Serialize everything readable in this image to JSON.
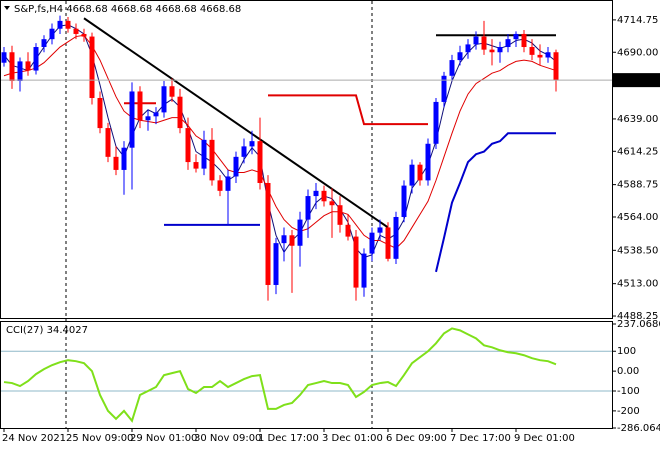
{
  "chart_data": [
    {
      "type": "candlestick",
      "title": "S&P,fs,H4  4668.68 4668.68 4668.68 4668.68",
      "categories": [
        "24 Nov 2021",
        null,
        null,
        null,
        null,
        null,
        null,
        null,
        "25 Nov 09:00",
        null,
        null,
        null,
        null,
        null,
        null,
        null,
        "29 Nov 01:00",
        null,
        null,
        null,
        null,
        null,
        null,
        null,
        "30 Nov 09:00",
        null,
        null,
        null,
        null,
        null,
        null,
        null,
        "1 Dec 17:00",
        null,
        null,
        null,
        null,
        null,
        null,
        null,
        "3 Dec 01:00",
        null,
        null,
        null,
        null,
        null,
        null,
        null,
        "6 Dec 09:00",
        null,
        null,
        null,
        null,
        null,
        null,
        null,
        "7 Dec 17:00",
        null,
        null,
        null,
        null,
        null,
        null,
        null,
        "9 Dec 01:00",
        null,
        null,
        null,
        null,
        null
      ],
      "ohlc": [
        [
          4682,
          4694,
          4679,
          4690
        ],
        [
          4690,
          4695,
          4662,
          4668
        ],
        [
          4668,
          4686,
          4660,
          4683
        ],
        [
          4683,
          4690,
          4672,
          4676
        ],
        [
          4676,
          4697,
          4673,
          4694
        ],
        [
          4694,
          4703,
          4690,
          4700
        ],
        [
          4700,
          4712,
          4696,
          4708
        ],
        [
          4708,
          4718,
          4704,
          4714
        ],
        [
          4714,
          4717,
          4705,
          4708
        ],
        [
          4708,
          4712,
          4700,
          4704
        ],
        [
          4704,
          4708,
          4698,
          4702
        ],
        [
          4702,
          4705,
          4650,
          4655
        ],
        [
          4655,
          4660,
          4628,
          4632
        ],
        [
          4632,
          4636,
          4606,
          4610
        ],
        [
          4610,
          4618,
          4596,
          4600
        ],
        [
          4600,
          4622,
          4581,
          4617
        ],
        [
          4617,
          4667,
          4585,
          4660
        ],
        [
          4660,
          4664,
          4632,
          4638
        ],
        [
          4638,
          4646,
          4630,
          4641
        ],
        [
          4641,
          4648,
          4635,
          4644
        ],
        [
          4644,
          4668,
          4640,
          4664
        ],
        [
          4664,
          4670,
          4652,
          4656
        ],
        [
          4656,
          4662,
          4628,
          4632
        ],
        [
          4632,
          4640,
          4600,
          4606
        ],
        [
          4606,
          4612,
          4598,
          4601
        ],
        [
          4601,
          4630,
          4596,
          4623
        ],
        [
          4623,
          4632,
          4588,
          4592
        ],
        [
          4592,
          4596,
          4580,
          4584
        ],
        [
          4584,
          4600,
          4558,
          4595
        ],
        [
          4595,
          4614,
          4590,
          4610
        ],
        [
          4610,
          4624,
          4605,
          4618
        ],
        [
          4618,
          4630,
          4612,
          4622
        ],
        [
          4622,
          4640,
          4585,
          4590
        ],
        [
          4590,
          4596,
          4500,
          4512
        ],
        [
          4512,
          4548,
          4505,
          4544
        ],
        [
          4544,
          4556,
          4530,
          4550
        ],
        [
          4550,
          4554,
          4506,
          4542
        ],
        [
          4542,
          4568,
          4526,
          4562
        ],
        [
          4562,
          4585,
          4548,
          4580
        ],
        [
          4580,
          4590,
          4570,
          4584
        ],
        [
          4584,
          4588,
          4572,
          4576
        ],
        [
          4576,
          4586,
          4548,
          4573
        ],
        [
          4573,
          4580,
          4552,
          4558
        ],
        [
          4558,
          4566,
          4546,
          4549
        ],
        [
          4549,
          4554,
          4500,
          4510
        ],
        [
          4510,
          4540,
          4503,
          4536
        ],
        [
          4536,
          4556,
          4530,
          4552
        ],
        [
          4552,
          4562,
          4546,
          4556
        ],
        [
          4556,
          4560,
          4530,
          4532
        ],
        [
          4532,
          4568,
          4528,
          4564
        ],
        [
          4564,
          4592,
          4560,
          4588
        ],
        [
          4588,
          4608,
          4582,
          4604
        ],
        [
          4604,
          4606,
          4588,
          4592
        ],
        [
          4592,
          4624,
          4588,
          4620
        ],
        [
          4620,
          4655,
          4616,
          4652
        ],
        [
          4652,
          4675,
          4648,
          4672
        ],
        [
          4672,
          4688,
          4668,
          4684
        ],
        [
          4684,
          4695,
          4680,
          4690
        ],
        [
          4690,
          4700,
          4685,
          4696
        ],
        [
          4696,
          4706,
          4692,
          4702
        ],
        [
          4702,
          4714,
          4688,
          4692
        ],
        [
          4692,
          4700,
          4680,
          4690
        ],
        [
          4690,
          4698,
          4682,
          4694
        ],
        [
          4694,
          4704,
          4690,
          4700
        ],
        [
          4700,
          4706,
          4694,
          4704
        ],
        [
          4704,
          4707,
          4690,
          4694
        ],
        [
          4694,
          4700,
          4684,
          4688
        ],
        [
          4688,
          4696,
          4680,
          4686
        ],
        [
          4686,
          4694,
          4682,
          4690
        ],
        [
          4690,
          4692,
          4660,
          4668.68
        ]
      ],
      "up_color": "#0000ff",
      "down_color": "#ff0000",
      "series": [
        {
          "color": "#10107a",
          "values": [
            4688,
            4680,
            4678,
            4676,
            4685,
            4694,
            4703,
            4710,
            4711,
            4708,
            4704,
            4688,
            4665,
            4640,
            4618,
            4610,
            4626,
            4640,
            4646,
            4643,
            4650,
            4654,
            4648,
            4632,
            4614,
            4610,
            4606,
            4600,
            4592,
            4596,
            4608,
            4617,
            4610,
            4575,
            4550,
            4537,
            4546,
            4552,
            4564,
            4575,
            4580,
            4578,
            4570,
            4560,
            4540,
            4533,
            4535,
            4550,
            4547,
            4551,
            4562,
            4586,
            4594,
            4604,
            4622,
            4648,
            4668,
            4682,
            4690,
            4696,
            4697,
            4695,
            4693,
            4695,
            4699,
            4700,
            4697,
            4691,
            4688,
            4683
          ]
        },
        {
          "color": "#e00000",
          "values": [
            4672,
            4674,
            4675,
            4676,
            4678,
            4682,
            4688,
            4694,
            4698,
            4702,
            4703,
            4695,
            4684,
            4670,
            4656,
            4645,
            4640,
            4638,
            4637,
            4636,
            4638,
            4640,
            4640,
            4634,
            4626,
            4622,
            4616,
            4608,
            4600,
            4598,
            4598,
            4600,
            4598,
            4585,
            4572,
            4562,
            4556,
            4553,
            4555,
            4560,
            4565,
            4568,
            4568,
            4566,
            4558,
            4550,
            4546,
            4546,
            4543,
            4540,
            4546,
            4556,
            4566,
            4576,
            4592,
            4610,
            4628,
            4645,
            4658,
            4666,
            4670,
            4674,
            4676,
            4680,
            4683,
            4684,
            4683,
            4680,
            4678,
            4676
          ]
        },
        {
          "color": "#e00000",
          "values": [
            null,
            null,
            null,
            null,
            null,
            null,
            null,
            null,
            null,
            null,
            null,
            null,
            null,
            null,
            null,
            4651,
            4651,
            4651,
            4651,
            4651,
            null,
            null,
            null,
            null,
            null,
            null,
            null,
            null,
            null,
            null,
            null,
            null,
            null,
            4657,
            4657,
            4657,
            4657,
            4657,
            4657,
            4657,
            4657,
            4657,
            4657,
            4657,
            4657,
            4635,
            4635,
            4635,
            4635,
            4635,
            4635,
            4635,
            4635,
            4635,
            null,
            null,
            null,
            null,
            null,
            null,
            null,
            null,
            null,
            null,
            null,
            null,
            null,
            null,
            null,
            null
          ]
        },
        {
          "color": "#0000cc",
          "values": [
            null,
            null,
            null,
            null,
            null,
            null,
            null,
            null,
            null,
            null,
            null,
            null,
            null,
            null,
            null,
            null,
            null,
            null,
            null,
            null,
            4558,
            4558,
            4558,
            4558,
            4558,
            4558,
            4558,
            4558,
            4558,
            4558,
            4558,
            4558,
            4558,
            null,
            null,
            null,
            null,
            null,
            null,
            null,
            null,
            null,
            null,
            null,
            null,
            null,
            null,
            null,
            null,
            null,
            null,
            null,
            null,
            null,
            4522,
            4548,
            4575,
            4590,
            4606,
            4612,
            4614,
            4620,
            4622,
            4628,
            4628,
            4628,
            4628,
            4628,
            4628,
            4628
          ]
        }
      ],
      "trendlines": [
        {
          "color": "#000000",
          "x": [
            10,
            48
          ],
          "y": [
            4716,
            4556
          ]
        },
        {
          "color": "#000000",
          "x": [
            54,
            69
          ],
          "y": [
            4703,
            4703
          ]
        }
      ],
      "last_price": 4668.68,
      "ylim": [
        4487.5,
        4729.2
      ],
      "yticks": [
        4714.75,
        {
          "value": 4690,
          "label": "4690.00"
        },
        {
          "value": 4639,
          "label": "4639.00"
        },
        4614.25,
        4588.75,
        {
          "value": 4564,
          "label": "4564.00"
        },
        {
          "value": 4538.5,
          "label": "4538.50"
        },
        {
          "value": 4513,
          "label": "4513.00"
        },
        4488.25
      ]
    },
    {
      "type": "line",
      "title": "CCI(27) 34.4027",
      "color": "#7fe01a",
      "values": [
        -55,
        -60,
        -75,
        -50,
        -15,
        10,
        30,
        45,
        55,
        50,
        40,
        0,
        -120,
        -200,
        -240,
        -200,
        -250,
        -120,
        -100,
        -80,
        -20,
        -10,
        0,
        -90,
        -110,
        -80,
        -80,
        -50,
        -80,
        -60,
        -40,
        -25,
        -20,
        -190,
        -190,
        -170,
        -160,
        -120,
        -70,
        -60,
        -50,
        -60,
        -60,
        -70,
        -130,
        -105,
        -70,
        -60,
        -55,
        -75,
        -20,
        40,
        70,
        100,
        140,
        190,
        215,
        205,
        185,
        165,
        130,
        120,
        105,
        95,
        90,
        80,
        65,
        55,
        50,
        34.4027
      ],
      "levels": [
        100,
        -100
      ],
      "ylim": [
        -286.0641,
        237.0686
      ],
      "yticks": [
        237.0686,
        100,
        {
          "value": 0,
          "label": "0.00"
        },
        -100,
        -200,
        -286.0641
      ]
    }
  ]
}
